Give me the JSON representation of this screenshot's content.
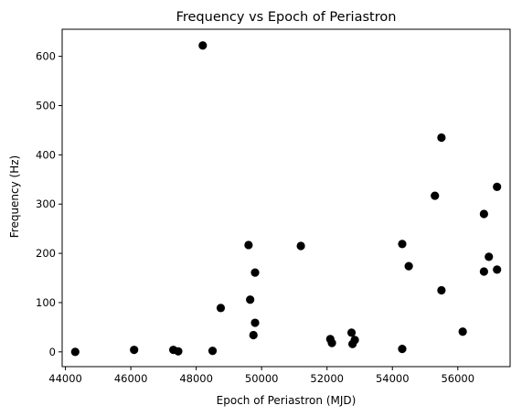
{
  "chart_data": {
    "type": "scatter",
    "title": "Frequency vs  Epoch of Periastron",
    "xlabel": "Epoch of Periastron (MJD)",
    "ylabel": "Frequency (Hz)",
    "xlim": [
      43900,
      57600
    ],
    "ylim": [
      -30,
      655
    ],
    "xticks": [
      44000,
      46000,
      48000,
      50000,
      52000,
      54000,
      56000
    ],
    "yticks": [
      0,
      100,
      200,
      300,
      400,
      500,
      600
    ],
    "grid": false,
    "marker_color": "#000000",
    "points": [
      {
        "x": 44300,
        "y": 0
      },
      {
        "x": 46100,
        "y": 4
      },
      {
        "x": 47300,
        "y": 4
      },
      {
        "x": 47450,
        "y": 1
      },
      {
        "x": 48200,
        "y": 622
      },
      {
        "x": 48500,
        "y": 2
      },
      {
        "x": 48750,
        "y": 89
      },
      {
        "x": 49600,
        "y": 217
      },
      {
        "x": 49650,
        "y": 106
      },
      {
        "x": 49750,
        "y": 34
      },
      {
        "x": 49800,
        "y": 161
      },
      {
        "x": 49800,
        "y": 59
      },
      {
        "x": 51200,
        "y": 215
      },
      {
        "x": 52100,
        "y": 26
      },
      {
        "x": 52150,
        "y": 18
      },
      {
        "x": 52750,
        "y": 39
      },
      {
        "x": 52780,
        "y": 16
      },
      {
        "x": 52850,
        "y": 24
      },
      {
        "x": 54300,
        "y": 219
      },
      {
        "x": 54300,
        "y": 6
      },
      {
        "x": 54500,
        "y": 174
      },
      {
        "x": 55300,
        "y": 317
      },
      {
        "x": 55500,
        "y": 435
      },
      {
        "x": 55500,
        "y": 125
      },
      {
        "x": 56150,
        "y": 41
      },
      {
        "x": 56800,
        "y": 280
      },
      {
        "x": 56800,
        "y": 163
      },
      {
        "x": 56950,
        "y": 193
      },
      {
        "x": 57200,
        "y": 335
      },
      {
        "x": 57200,
        "y": 167
      }
    ]
  }
}
